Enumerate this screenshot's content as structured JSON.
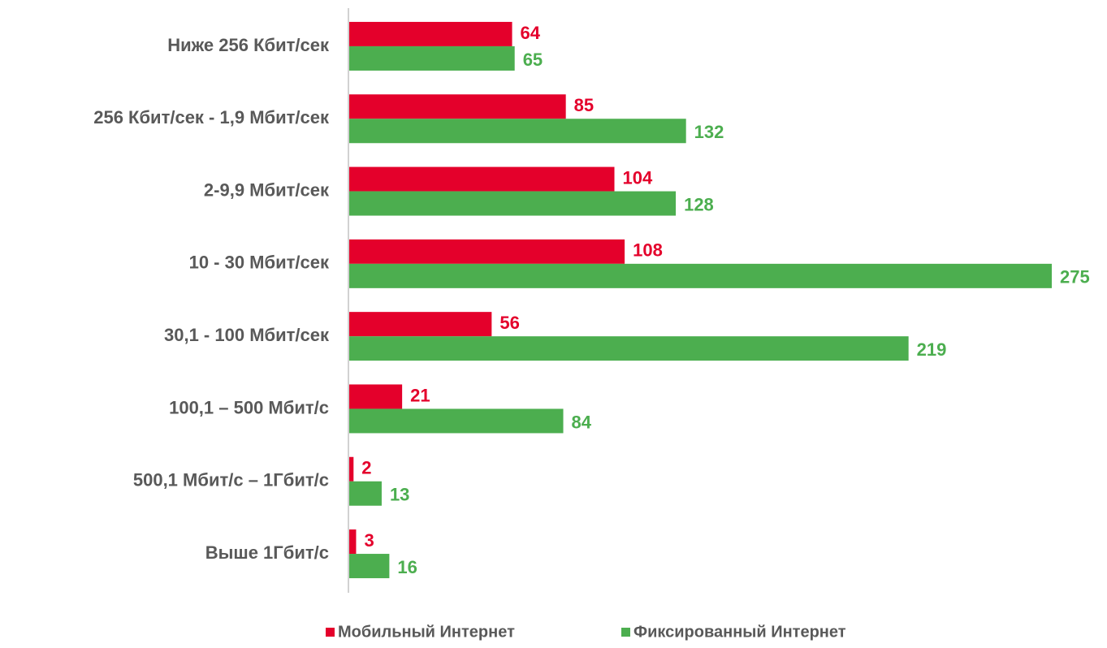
{
  "chart_data": {
    "type": "bar",
    "orientation": "horizontal",
    "categories": [
      "Ниже 256 Кбит/сек",
      "256 Кбит/сек - 1,9 Мбит/сек",
      "2-9,9 Мбит/сек",
      "10 - 30 Мбит/сек",
      "30,1 - 100 Мбит/сек",
      "100,1 – 500 Мбит/с",
      "500,1 Мбит/с – 1Гбит/с",
      "Выше 1Гбит/с"
    ],
    "series": [
      {
        "name": "Мобильный Интернет",
        "color": "#e4002b",
        "values": [
          64,
          85,
          104,
          108,
          56,
          21,
          2,
          3
        ]
      },
      {
        "name": "Фиксированный Интернет",
        "color": "#4cae4f",
        "values": [
          65,
          132,
          128,
          275,
          219,
          84,
          13,
          16
        ]
      }
    ],
    "legend": "bottom"
  }
}
